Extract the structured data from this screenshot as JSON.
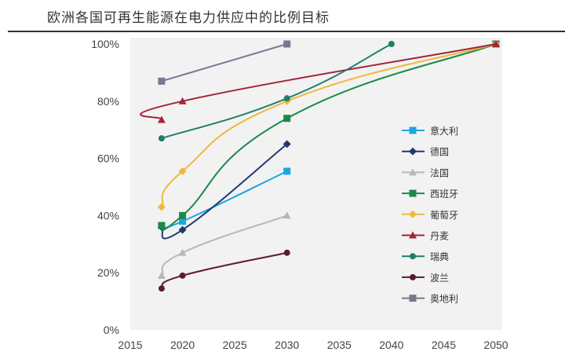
{
  "chart_data": {
    "type": "line",
    "title": "欧洲各国可再生能源在电力供应中的比例目标",
    "xlabel": "",
    "ylabel": "",
    "xlim": [
      2015,
      2050
    ],
    "ylim": [
      0,
      100
    ],
    "xticks": [
      "2015",
      "2020",
      "2025",
      "2030",
      "2035",
      "2040",
      "2045",
      "2050"
    ],
    "yticks": [
      "0%",
      "20%",
      "40%",
      "60%",
      "80%",
      "100%"
    ],
    "grid": false,
    "legend_position": "right",
    "series": [
      {
        "name": "意大利",
        "color": "#1ba6e0",
        "marker": "square",
        "x": [
          2018,
          2020,
          2030
        ],
        "y": [
          36.5,
          38,
          55.5
        ]
      },
      {
        "name": "德国",
        "color": "#1f3a6e",
        "marker": "diamond",
        "x": [
          2018,
          2020,
          2030
        ],
        "y": [
          36,
          35,
          65
        ]
      },
      {
        "name": "法国",
        "color": "#b8b8b8",
        "marker": "triangle",
        "x": [
          2018,
          2020,
          2030
        ],
        "y": [
          19,
          27,
          40
        ]
      },
      {
        "name": "西班牙",
        "color": "#1a8a4a",
        "marker": "square",
        "x": [
          2018,
          2020,
          2030,
          2050
        ],
        "y": [
          36.5,
          40,
          74,
          100
        ]
      },
      {
        "name": "葡萄牙",
        "color": "#f0b83a",
        "marker": "diamond",
        "x": [
          2018,
          2020,
          2030,
          2050
        ],
        "y": [
          43,
          55.5,
          80,
          100
        ]
      },
      {
        "name": "丹麦",
        "color": "#a0263a",
        "marker": "triangle",
        "x": [
          2018,
          2020,
          2050
        ],
        "y": [
          73.5,
          80,
          100
        ]
      },
      {
        "name": "瑞典",
        "color": "#1e7f6a",
        "marker": "circle",
        "x": [
          2018,
          2030,
          2040
        ],
        "y": [
          67,
          81,
          100
        ]
      },
      {
        "name": "波兰",
        "color": "#5c1a32",
        "marker": "circle",
        "x": [
          2018,
          2020,
          2030
        ],
        "y": [
          14.5,
          19,
          27
        ]
      },
      {
        "name": "奥地利",
        "color": "#7a7890",
        "marker": "square",
        "x": [
          2018,
          2030
        ],
        "y": [
          87,
          100
        ]
      }
    ]
  }
}
